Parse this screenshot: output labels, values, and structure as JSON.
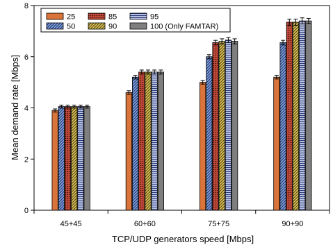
{
  "chart_data": {
    "type": "bar",
    "title": "",
    "xlabel": "TCP/UDP generators speed [Mbps]",
    "ylabel": "Mean demand rate [Mbps]",
    "ylim": [
      0,
      8
    ],
    "yticks": [
      "0",
      "2",
      "4",
      "6",
      "8"
    ],
    "categories": [
      "45+45",
      "60+60",
      "75+75",
      "90+90"
    ],
    "legend_position": "top-left",
    "series": [
      {
        "name": "25",
        "pattern": "solid",
        "color": "#d9743a",
        "values": [
          3.9,
          4.6,
          5.0,
          5.2
        ],
        "errors": [
          0.06,
          0.07,
          0.07,
          0.07
        ]
      },
      {
        "name": "50",
        "pattern": "diagonal",
        "color": "#4a6fb5",
        "values": [
          4.05,
          5.2,
          6.0,
          6.55
        ],
        "errors": [
          0.06,
          0.07,
          0.08,
          0.09
        ]
      },
      {
        "name": "85",
        "pattern": "dots",
        "color": "#b0302a",
        "values": [
          4.05,
          5.4,
          6.55,
          7.35
        ],
        "errors": [
          0.06,
          0.08,
          0.09,
          0.12
        ]
      },
      {
        "name": "90",
        "pattern": "diagonal2",
        "color": "#c8a830",
        "values": [
          4.05,
          5.4,
          6.6,
          7.35
        ],
        "errors": [
          0.06,
          0.08,
          0.1,
          0.12
        ]
      },
      {
        "name": "95",
        "pattern": "horizontal",
        "color": "#6a7fc0",
        "values": [
          4.05,
          5.4,
          6.65,
          7.4
        ],
        "errors": [
          0.06,
          0.08,
          0.1,
          0.12
        ]
      },
      {
        "name": "100 (Only FAMTAR)",
        "pattern": "solid",
        "color": "#7f7f7f",
        "values": [
          4.05,
          5.4,
          6.6,
          7.4
        ],
        "errors": [
          0.06,
          0.08,
          0.1,
          0.1
        ]
      }
    ]
  }
}
